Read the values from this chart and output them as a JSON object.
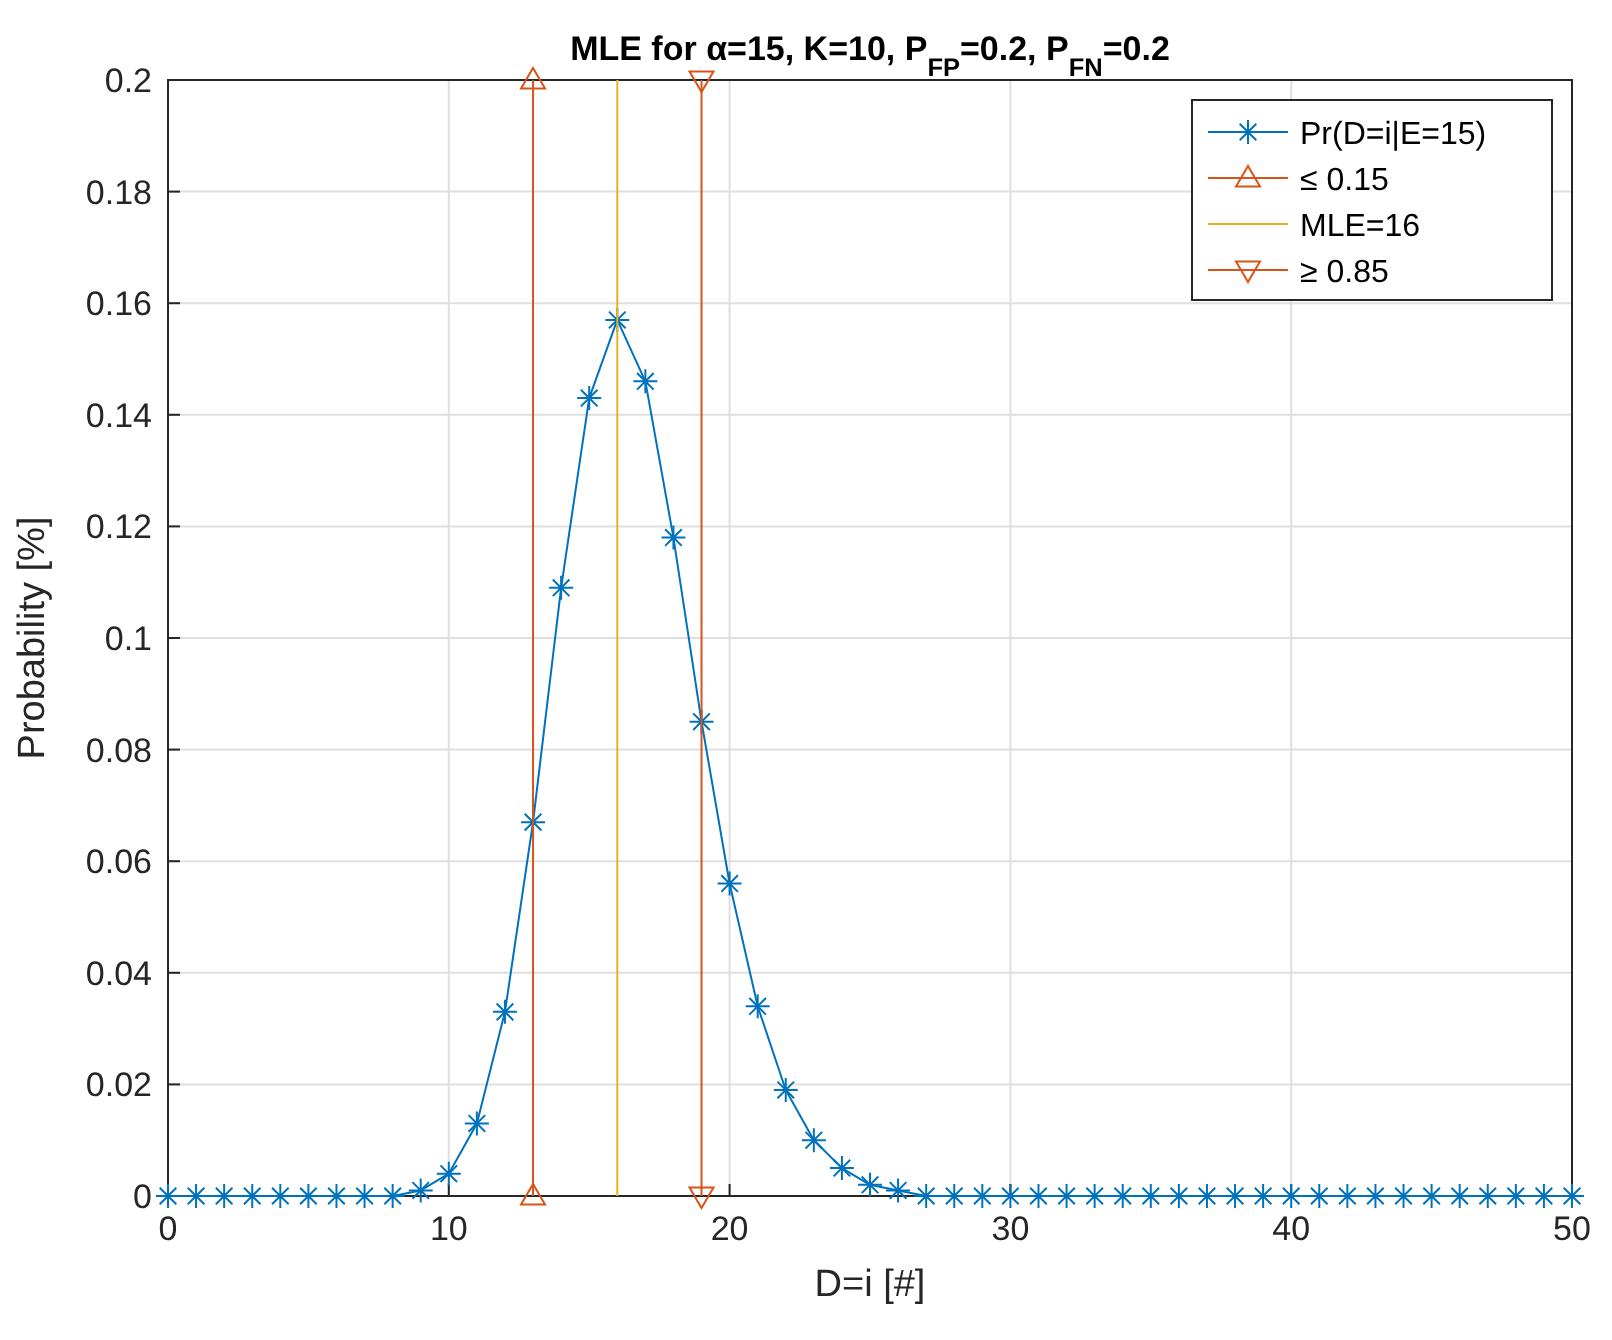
{
  "chart_data": {
    "type": "line",
    "title": "MLE for α=15, K=10, P$_{FP}$=0.2, P$_{FN}$=0.2",
    "xlabel": "D=i [#]",
    "ylabel": "Probability [%]",
    "x": [
      0,
      1,
      2,
      3,
      4,
      5,
      6,
      7,
      8,
      9,
      10,
      11,
      12,
      13,
      14,
      15,
      16,
      17,
      18,
      19,
      20,
      21,
      22,
      23,
      24,
      25,
      26,
      27,
      28,
      29,
      30,
      31,
      32,
      33,
      34,
      35,
      36,
      37,
      38,
      39,
      40,
      41,
      42,
      43,
      44,
      45,
      46,
      47,
      48,
      49,
      50
    ],
    "series": [
      {
        "name": "Pr(D=i|E=15)",
        "color": "#0072bd",
        "marker": "cross",
        "values": [
          0,
          0,
          0,
          0,
          0,
          0,
          0,
          0,
          0,
          0.001,
          0.004,
          0.013,
          0.033,
          0.067,
          0.109,
          0.143,
          0.157,
          0.146,
          0.118,
          0.085,
          0.056,
          0.034,
          0.019,
          0.01,
          0.005,
          0.002,
          0.001,
          0,
          0,
          0,
          0,
          0,
          0,
          0,
          0,
          0,
          0,
          0,
          0,
          0,
          0,
          0,
          0,
          0,
          0,
          0,
          0,
          0,
          0,
          0,
          0
        ]
      },
      {
        "name": "≤ 0.15",
        "color": "#d95319",
        "marker": "triangle",
        "x": [
          13,
          13
        ],
        "values": [
          0,
          0.2
        ]
      },
      {
        "name": "MLE=16",
        "color": "#edb120",
        "marker": "none",
        "x": [
          16,
          16
        ],
        "values": [
          0,
          0.2
        ]
      },
      {
        "name": "≥ 0.85",
        "color": "#d95319",
        "marker": "triangle-down",
        "x": [
          19,
          19
        ],
        "values": [
          0,
          0.2
        ]
      }
    ],
    "xlim": [
      0,
      50
    ],
    "xticks": [
      0,
      10,
      20,
      30,
      40,
      50
    ],
    "ylim": [
      0,
      0.2
    ],
    "yticks": [
      0,
      0.02,
      0.04,
      0.06,
      0.08,
      0.1,
      0.12,
      0.14,
      0.16,
      0.18,
      0.2
    ],
    "grid": true,
    "legend": "top right"
  }
}
